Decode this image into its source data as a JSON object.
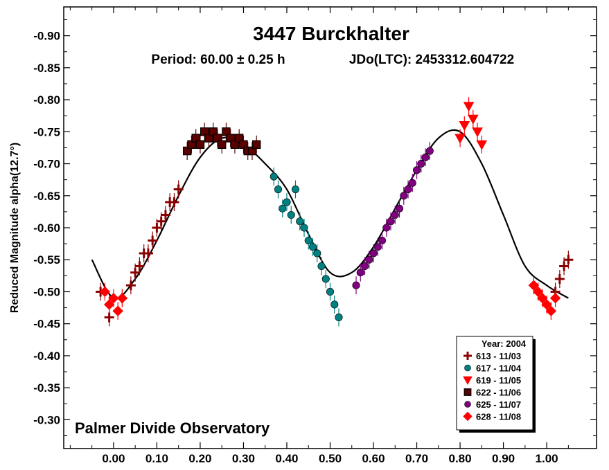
{
  "chart_data": {
    "type": "scatter",
    "title": "3447 Burckhalter",
    "subtitle_period": "Period: 60.00 ± 0.25 h",
    "subtitle_epoch": "JDo(LTC): 2453312.604722",
    "ylabel": "Reduced Magnitude alpha(12.7°)",
    "xlabel": "",
    "annotation": "Palmer Divide Observatory",
    "xlim": [
      -0.115,
      1.115
    ],
    "ylim": [
      -0.945,
      -0.255
    ],
    "y_inverted": true,
    "x_ticks": [
      "0.00",
      "0.10",
      "0.20",
      "0.30",
      "0.40",
      "0.50",
      "0.60",
      "0.70",
      "0.80",
      "0.90",
      "1.00"
    ],
    "x_tick_values": [
      0,
      0.1,
      0.2,
      0.3,
      0.4,
      0.5,
      0.6,
      0.7,
      0.8,
      0.9,
      1.0
    ],
    "y_ticks": [
      "-0.90",
      "-0.85",
      "-0.80",
      "-0.75",
      "-0.70",
      "-0.65",
      "-0.60",
      "-0.55",
      "-0.50",
      "-0.45",
      "-0.40",
      "-0.35",
      "-0.30"
    ],
    "y_tick_values": [
      -0.9,
      -0.85,
      -0.8,
      -0.75,
      -0.7,
      -0.65,
      -0.6,
      -0.55,
      -0.5,
      -0.45,
      -0.4,
      -0.35,
      -0.3
    ],
    "grid": false,
    "legend_position": "bottom-right",
    "legend_title": "Year: 2004",
    "series": [
      {
        "name": "613 - 11/03",
        "marker": "plus",
        "color": "#8b0000",
        "x": [
          -0.03,
          -0.01,
          0.02,
          0.04,
          0.05,
          0.06,
          0.07,
          0.08,
          0.09,
          0.1,
          0.11,
          0.12,
          0.13,
          0.14,
          0.15,
          1.02,
          1.03,
          1.04,
          1.05
        ],
        "y": [
          -0.5,
          -0.46,
          -0.49,
          -0.51,
          -0.53,
          -0.54,
          -0.56,
          -0.56,
          -0.58,
          -0.6,
          -0.61,
          -0.62,
          -0.64,
          -0.64,
          -0.66,
          -0.5,
          -0.52,
          -0.54,
          -0.55
        ]
      },
      {
        "name": "617 - 11/04",
        "marker": "circle",
        "color": "#008080",
        "x": [
          0.37,
          0.38,
          0.39,
          0.4,
          0.41,
          0.42,
          0.43,
          0.44,
          0.45,
          0.46,
          0.47,
          0.48,
          0.49,
          0.5,
          0.51,
          0.52
        ],
        "y": [
          -0.68,
          -0.66,
          -0.63,
          -0.64,
          -0.62,
          -0.66,
          -0.61,
          -0.6,
          -0.58,
          -0.57,
          -0.56,
          -0.54,
          -0.52,
          -0.5,
          -0.48,
          -0.46
        ]
      },
      {
        "name": "619 - 11/05",
        "marker": "triangle-down",
        "color": "#ff0000",
        "x": [
          0.8,
          0.81,
          0.82,
          0.83,
          0.84,
          0.85
        ],
        "y": [
          -0.74,
          -0.76,
          -0.79,
          -0.77,
          -0.75,
          -0.73
        ]
      },
      {
        "name": "622 - 11/06",
        "marker": "square",
        "color": "#5c0000",
        "x": [
          0.17,
          0.18,
          0.19,
          0.2,
          0.21,
          0.22,
          0.23,
          0.24,
          0.25,
          0.26,
          0.27,
          0.28,
          0.29,
          0.3,
          0.31,
          0.32,
          0.33
        ],
        "y": [
          -0.72,
          -0.73,
          -0.74,
          -0.73,
          -0.75,
          -0.74,
          -0.75,
          -0.74,
          -0.73,
          -0.75,
          -0.74,
          -0.73,
          -0.74,
          -0.73,
          -0.72,
          -0.72,
          -0.73
        ]
      },
      {
        "name": "625 - 11/07",
        "marker": "circle",
        "color": "#800080",
        "x": [
          0.56,
          0.57,
          0.58,
          0.59,
          0.6,
          0.61,
          0.62,
          0.63,
          0.64,
          0.65,
          0.66,
          0.67,
          0.68,
          0.69,
          0.7,
          0.71,
          0.72,
          0.73
        ],
        "y": [
          -0.51,
          -0.53,
          -0.54,
          -0.55,
          -0.56,
          -0.57,
          -0.58,
          -0.6,
          -0.61,
          -0.62,
          -0.63,
          -0.65,
          -0.66,
          -0.67,
          -0.69,
          -0.7,
          -0.71,
          -0.72
        ]
      },
      {
        "name": "628 - 11/08",
        "marker": "diamond",
        "color": "#ff0000",
        "x": [
          -0.02,
          -0.01,
          0.0,
          0.01,
          0.02,
          0.97,
          0.98,
          0.99,
          1.0,
          1.01,
          1.02
        ],
        "y": [
          -0.5,
          -0.48,
          -0.49,
          -0.47,
          -0.49,
          -0.51,
          -0.5,
          -0.49,
          -0.48,
          -0.47,
          -0.49
        ]
      }
    ],
    "fit_curve": {
      "type": "line",
      "x": [
        -0.05,
        0.0,
        0.05,
        0.1,
        0.15,
        0.2,
        0.25,
        0.3,
        0.35,
        0.4,
        0.45,
        0.5,
        0.55,
        0.6,
        0.65,
        0.7,
        0.75,
        0.8,
        0.85,
        0.9,
        0.95,
        1.0,
        1.05
      ],
      "y": [
        -0.55,
        -0.49,
        -0.52,
        -0.58,
        -0.65,
        -0.71,
        -0.74,
        -0.73,
        -0.7,
        -0.66,
        -0.59,
        -0.53,
        -0.53,
        -0.57,
        -0.63,
        -0.69,
        -0.74,
        -0.75,
        -0.7,
        -0.62,
        -0.54,
        -0.51,
        -0.49
      ]
    }
  }
}
